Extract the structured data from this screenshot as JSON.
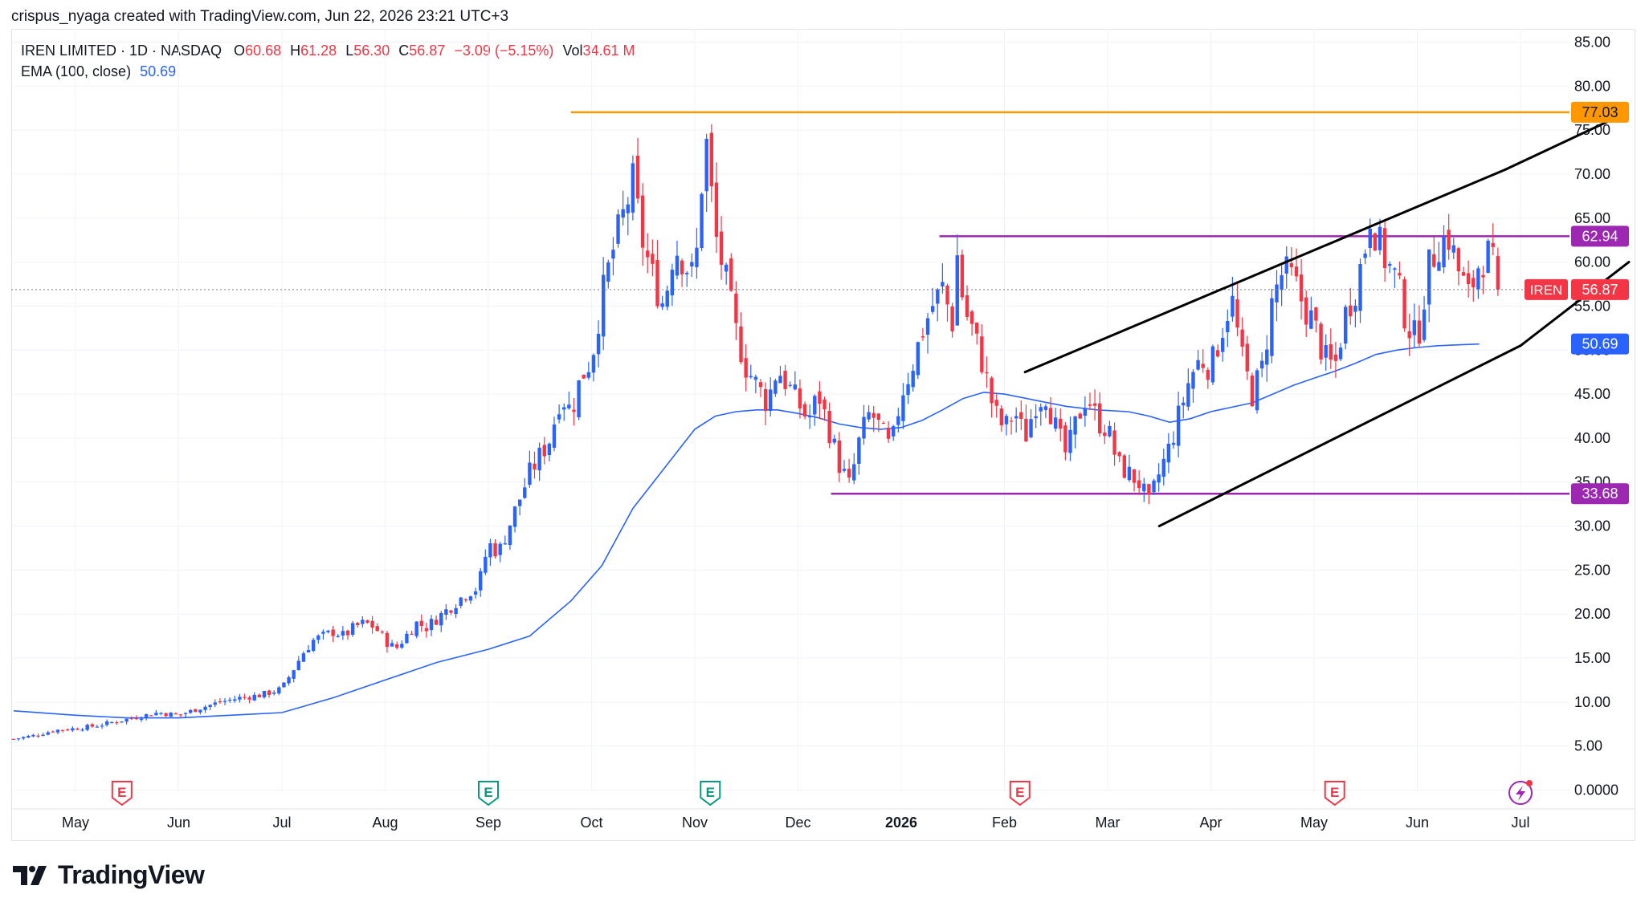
{
  "header": {
    "credit": "crispus_nyaga created with TradingView.com, Jun 22, 2026 23:21 UTC+3"
  },
  "legend": {
    "symbol": "IREN LIMITED · 1D · NASDAQ",
    "o_label": "O",
    "o_value": "60.68",
    "h_label": "H",
    "h_value": "61.28",
    "l_label": "L",
    "l_value": "56.30",
    "c_label": "C",
    "c_value": "56.87",
    "change": "−3.09 (−5.15%)",
    "vol_label": "Vol",
    "vol_value": "34.61 M",
    "ema_label": "EMA (100, close)",
    "ema_value": "50.69"
  },
  "brand": {
    "name": "TradingView"
  },
  "colors": {
    "up": "#2962ff",
    "down": "#f23645",
    "ema": "#2962ff",
    "orange": "#ff9800",
    "purple": "#9c27b0",
    "trend": "#000000",
    "grid": "#f0f3fa",
    "axis_text": "#131722"
  },
  "chart_data": {
    "type": "candlestick",
    "symbol": "IREN",
    "y_ticks": [
      "85.00",
      "80.00",
      "75.00",
      "70.00",
      "65.00",
      "60.00",
      "55.00",
      "50.00",
      "45.00",
      "40.00",
      "35.00",
      "30.00",
      "25.00",
      "20.00",
      "15.00",
      "10.00",
      "5.00",
      "0.0000"
    ],
    "ylim": [
      0,
      85
    ],
    "x_ticks": [
      {
        "label": "May",
        "month": 0
      },
      {
        "label": "Jun",
        "month": 1
      },
      {
        "label": "Jul",
        "month": 2
      },
      {
        "label": "Aug",
        "month": 3
      },
      {
        "label": "Sep",
        "month": 4
      },
      {
        "label": "Oct",
        "month": 5
      },
      {
        "label": "Nov",
        "month": 6
      },
      {
        "label": "Dec",
        "month": 7
      },
      {
        "label": "2026",
        "month": 8,
        "bold": true
      },
      {
        "label": "Feb",
        "month": 9
      },
      {
        "label": "Mar",
        "month": 10
      },
      {
        "label": "Apr",
        "month": 11
      },
      {
        "label": "May",
        "month": 12
      },
      {
        "label": "Jun",
        "month": 13
      },
      {
        "label": "Jul",
        "month": 14
      }
    ],
    "close_path": [
      [
        -0.6,
        5.8
      ],
      [
        -0.4,
        6.2
      ],
      [
        -0.2,
        6.8
      ],
      [
        0.0,
        7.0
      ],
      [
        0.2,
        7.3
      ],
      [
        0.4,
        7.8
      ],
      [
        0.6,
        8.3
      ],
      [
        0.8,
        8.8
      ],
      [
        1.0,
        8.5
      ],
      [
        1.2,
        9.3
      ],
      [
        1.4,
        10.0
      ],
      [
        1.6,
        10.5
      ],
      [
        1.8,
        10.8
      ],
      [
        2.0,
        11.5
      ],
      [
        2.1,
        13.5
      ],
      [
        2.2,
        15.5
      ],
      [
        2.3,
        17.0
      ],
      [
        2.4,
        17.5
      ],
      [
        2.5,
        18.0
      ],
      [
        2.6,
        17.5
      ],
      [
        2.7,
        18.5
      ],
      [
        2.8,
        19.0
      ],
      [
        2.9,
        18.5
      ],
      [
        3.0,
        17.0
      ],
      [
        3.1,
        16.0
      ],
      [
        3.2,
        17.5
      ],
      [
        3.3,
        19.0
      ],
      [
        3.4,
        18.5
      ],
      [
        3.5,
        19.5
      ],
      [
        3.6,
        20.5
      ],
      [
        3.7,
        21.5
      ],
      [
        3.8,
        22.5
      ],
      [
        3.9,
        23.0
      ],
      [
        4.0,
        28.0
      ],
      [
        4.1,
        27.0
      ],
      [
        4.2,
        30.0
      ],
      [
        4.3,
        33.0
      ],
      [
        4.4,
        36.0
      ],
      [
        4.5,
        38.0
      ],
      [
        4.6,
        40.0
      ],
      [
        4.7,
        45.0
      ],
      [
        4.8,
        43.0
      ],
      [
        4.9,
        47.0
      ],
      [
        5.0,
        49.0
      ],
      [
        5.1,
        56.0
      ],
      [
        5.2,
        61.0
      ],
      [
        5.3,
        65.0
      ],
      [
        5.4,
        69.0
      ],
      [
        5.5,
        62.0
      ],
      [
        5.6,
        58.0
      ],
      [
        5.7,
        55.0
      ],
      [
        5.8,
        62.0
      ],
      [
        5.9,
        60.0
      ],
      [
        6.0,
        58.0
      ],
      [
        6.05,
        66.0
      ],
      [
        6.1,
        75.0
      ],
      [
        6.2,
        63.0
      ],
      [
        6.3,
        58.0
      ],
      [
        6.4,
        52.0
      ],
      [
        6.5,
        48.0
      ],
      [
        6.6,
        46.0
      ],
      [
        6.7,
        44.0
      ],
      [
        6.8,
        48.0
      ],
      [
        6.9,
        46.0
      ],
      [
        7.0,
        44.0
      ],
      [
        7.1,
        42.0
      ],
      [
        7.2,
        45.0
      ],
      [
        7.3,
        41.0
      ],
      [
        7.4,
        37.0
      ],
      [
        7.5,
        34.5
      ],
      [
        7.6,
        40.0
      ],
      [
        7.7,
        43.0
      ],
      [
        7.8,
        41.0
      ],
      [
        7.9,
        38.5
      ],
      [
        8.0,
        45.0
      ],
      [
        8.1,
        48.0
      ],
      [
        8.2,
        52.0
      ],
      [
        8.3,
        55.0
      ],
      [
        8.4,
        57.0
      ],
      [
        8.5,
        53.0
      ],
      [
        8.55,
        62.0
      ],
      [
        8.6,
        55.0
      ],
      [
        8.7,
        52.0
      ],
      [
        8.8,
        48.0
      ],
      [
        8.9,
        43.0
      ],
      [
        9.0,
        41.0
      ],
      [
        9.1,
        43.0
      ],
      [
        9.2,
        40.0
      ],
      [
        9.3,
        44.0
      ],
      [
        9.4,
        45.0
      ],
      [
        9.5,
        41.0
      ],
      [
        9.6,
        38.0
      ],
      [
        9.7,
        42.0
      ],
      [
        9.8,
        45.0
      ],
      [
        9.9,
        42.0
      ],
      [
        10.0,
        41.0
      ],
      [
        10.1,
        37.0
      ],
      [
        10.2,
        36.0
      ],
      [
        10.3,
        35.0
      ],
      [
        10.4,
        32.5
      ],
      [
        10.5,
        36.0
      ],
      [
        10.6,
        39.0
      ],
      [
        10.7,
        43.0
      ],
      [
        10.8,
        47.0
      ],
      [
        10.9,
        49.0
      ],
      [
        11.0,
        48.0
      ],
      [
        11.1,
        52.0
      ],
      [
        11.2,
        56.0
      ],
      [
        11.3,
        49.0
      ],
      [
        11.4,
        45.0
      ],
      [
        11.5,
        48.0
      ],
      [
        11.6,
        56.0
      ],
      [
        11.7,
        59.0
      ],
      [
        11.8,
        58.0
      ],
      [
        11.9,
        55.0
      ],
      [
        12.0,
        53.0
      ],
      [
        12.1,
        49.0
      ],
      [
        12.2,
        48.0
      ],
      [
        12.3,
        54.0
      ],
      [
        12.4,
        57.0
      ],
      [
        12.5,
        62.0
      ],
      [
        12.55,
        66.0
      ],
      [
        12.6,
        63.0
      ],
      [
        12.7,
        60.0
      ],
      [
        12.8,
        58.0
      ],
      [
        12.9,
        53.0
      ],
      [
        13.0,
        51.0
      ],
      [
        13.05,
        55.0
      ],
      [
        13.1,
        59.0
      ],
      [
        13.2,
        62.0
      ],
      [
        13.3,
        63.0
      ],
      [
        13.4,
        59.0
      ],
      [
        13.5,
        56.0
      ],
      [
        13.6,
        60.0
      ],
      [
        13.7,
        61.0
      ],
      [
        13.8,
        56.87
      ]
    ],
    "ema_path": [
      [
        -0.6,
        9.0
      ],
      [
        0.0,
        8.5
      ],
      [
        0.5,
        8.2
      ],
      [
        1.0,
        8.2
      ],
      [
        1.5,
        8.5
      ],
      [
        2.0,
        8.8
      ],
      [
        2.5,
        10.5
      ],
      [
        3.0,
        12.5
      ],
      [
        3.5,
        14.5
      ],
      [
        4.0,
        16.0
      ],
      [
        4.4,
        17.5
      ],
      [
        4.8,
        21.5
      ],
      [
        5.1,
        25.5
      ],
      [
        5.4,
        32.0
      ],
      [
        5.6,
        35.0
      ],
      [
        5.8,
        38.0
      ],
      [
        6.0,
        41.0
      ],
      [
        6.2,
        42.5
      ],
      [
        6.4,
        43.0
      ],
      [
        6.6,
        43.2
      ],
      [
        6.8,
        43.2
      ],
      [
        7.0,
        42.8
      ],
      [
        7.2,
        42.3
      ],
      [
        7.4,
        41.6
      ],
      [
        7.6,
        41.2
      ],
      [
        7.8,
        41.0
      ],
      [
        8.0,
        41.2
      ],
      [
        8.2,
        42.0
      ],
      [
        8.4,
        43.2
      ],
      [
        8.6,
        44.5
      ],
      [
        8.8,
        45.2
      ],
      [
        9.0,
        45.0
      ],
      [
        9.3,
        44.3
      ],
      [
        9.6,
        43.6
      ],
      [
        9.9,
        43.2
      ],
      [
        10.2,
        43.0
      ],
      [
        10.4,
        42.5
      ],
      [
        10.6,
        41.8
      ],
      [
        10.8,
        42.2
      ],
      [
        11.0,
        43.0
      ],
      [
        11.2,
        43.5
      ],
      [
        11.4,
        44.0
      ],
      [
        11.6,
        45.0
      ],
      [
        11.8,
        46.0
      ],
      [
        12.0,
        46.8
      ],
      [
        12.2,
        47.6
      ],
      [
        12.4,
        48.5
      ],
      [
        12.6,
        49.5
      ],
      [
        12.8,
        50.0
      ],
      [
        13.0,
        50.3
      ],
      [
        13.2,
        50.5
      ],
      [
        13.4,
        50.6
      ],
      [
        13.6,
        50.69
      ]
    ],
    "ema_value": 50.69,
    "last_close": 56.87,
    "last_price_label": "IREN",
    "levels": [
      {
        "value": 77.03,
        "label": "77.03",
        "color": "#ff9800",
        "from_month": 4.8
      },
      {
        "value": 62.94,
        "label": "62.94",
        "color": "#9c27b0",
        "from_month": 8.37
      },
      {
        "value": 33.68,
        "label": "33.68",
        "color": "#9c27b0",
        "from_month": 7.32
      }
    ],
    "trendlines": [
      {
        "from": [
          9.2,
          47.5
        ],
        "to": [
          13.85,
          70.5
        ]
      },
      {
        "from": [
          13.85,
          70.5
        ],
        "to": [
          14.85,
          76.0
        ]
      },
      {
        "from": [
          10.5,
          30.0
        ],
        "to": [
          14.0,
          50.5
        ]
      },
      {
        "from": [
          14.0,
          50.5
        ],
        "to": [
          15.05,
          60.0
        ]
      }
    ],
    "earnings_markers": [
      {
        "month": 0.45,
        "label": "E",
        "color": "#f23645"
      },
      {
        "month": 4.0,
        "label": "E",
        "color": "#089981"
      },
      {
        "month": 6.15,
        "label": "E",
        "color": "#089981"
      },
      {
        "month": 9.15,
        "label": "E",
        "color": "#f23645"
      },
      {
        "month": 12.2,
        "label": "E",
        "color": "#f23645"
      }
    ],
    "bolt_marker": {
      "month": 14.0
    }
  }
}
